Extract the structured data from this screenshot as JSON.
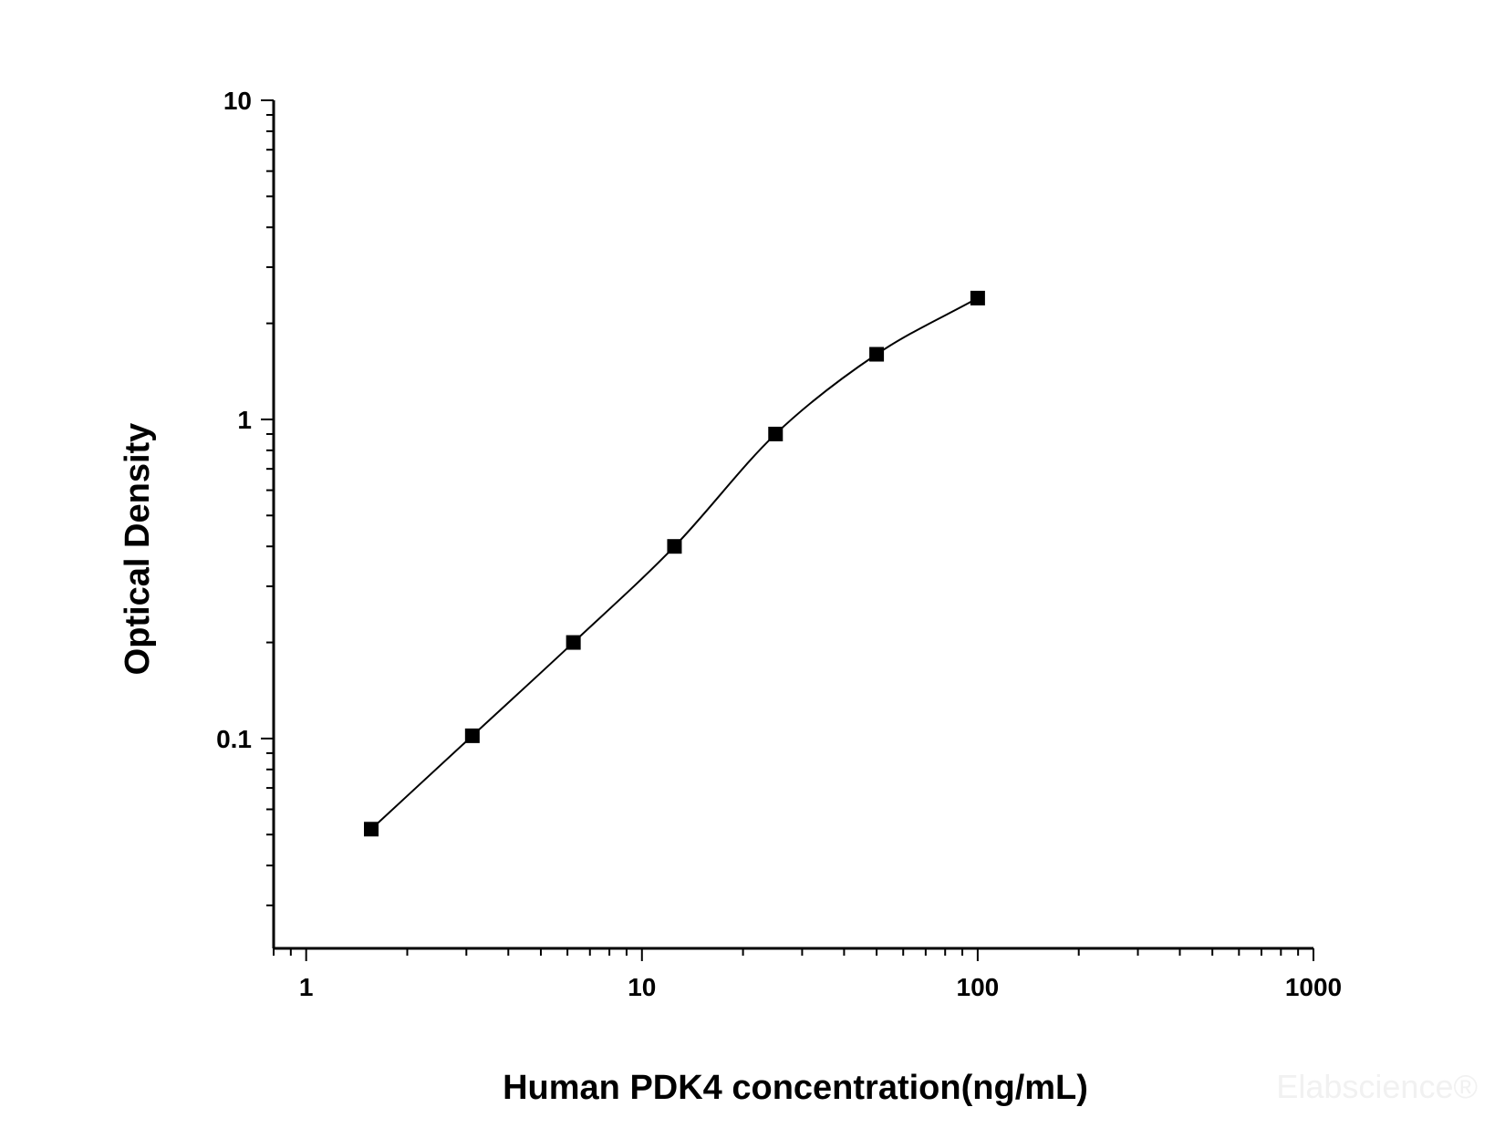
{
  "chart_data": {
    "type": "scatter",
    "title": "",
    "xlabel": "Human PDK4 concentration(ng/mL)",
    "ylabel": "Optical Density",
    "x_scale": "log",
    "y_scale": "log",
    "xlim": [
      0.8,
      1000
    ],
    "ylim": [
      0.022,
      10
    ],
    "x_ticks": [
      "1",
      "10",
      "100",
      "1000"
    ],
    "y_ticks": [
      "0.1",
      "1",
      "10"
    ],
    "grid": false,
    "legend": "none",
    "series": [
      {
        "marker": "square",
        "color": "#000000",
        "x": [
          1.5625,
          3.125,
          6.25,
          12.5,
          25,
          50,
          100
        ],
        "y": [
          0.052,
          0.102,
          0.2,
          0.4,
          0.9,
          1.6,
          2.4
        ],
        "fit_curve": true
      }
    ]
  },
  "watermark": "Elabscience®"
}
